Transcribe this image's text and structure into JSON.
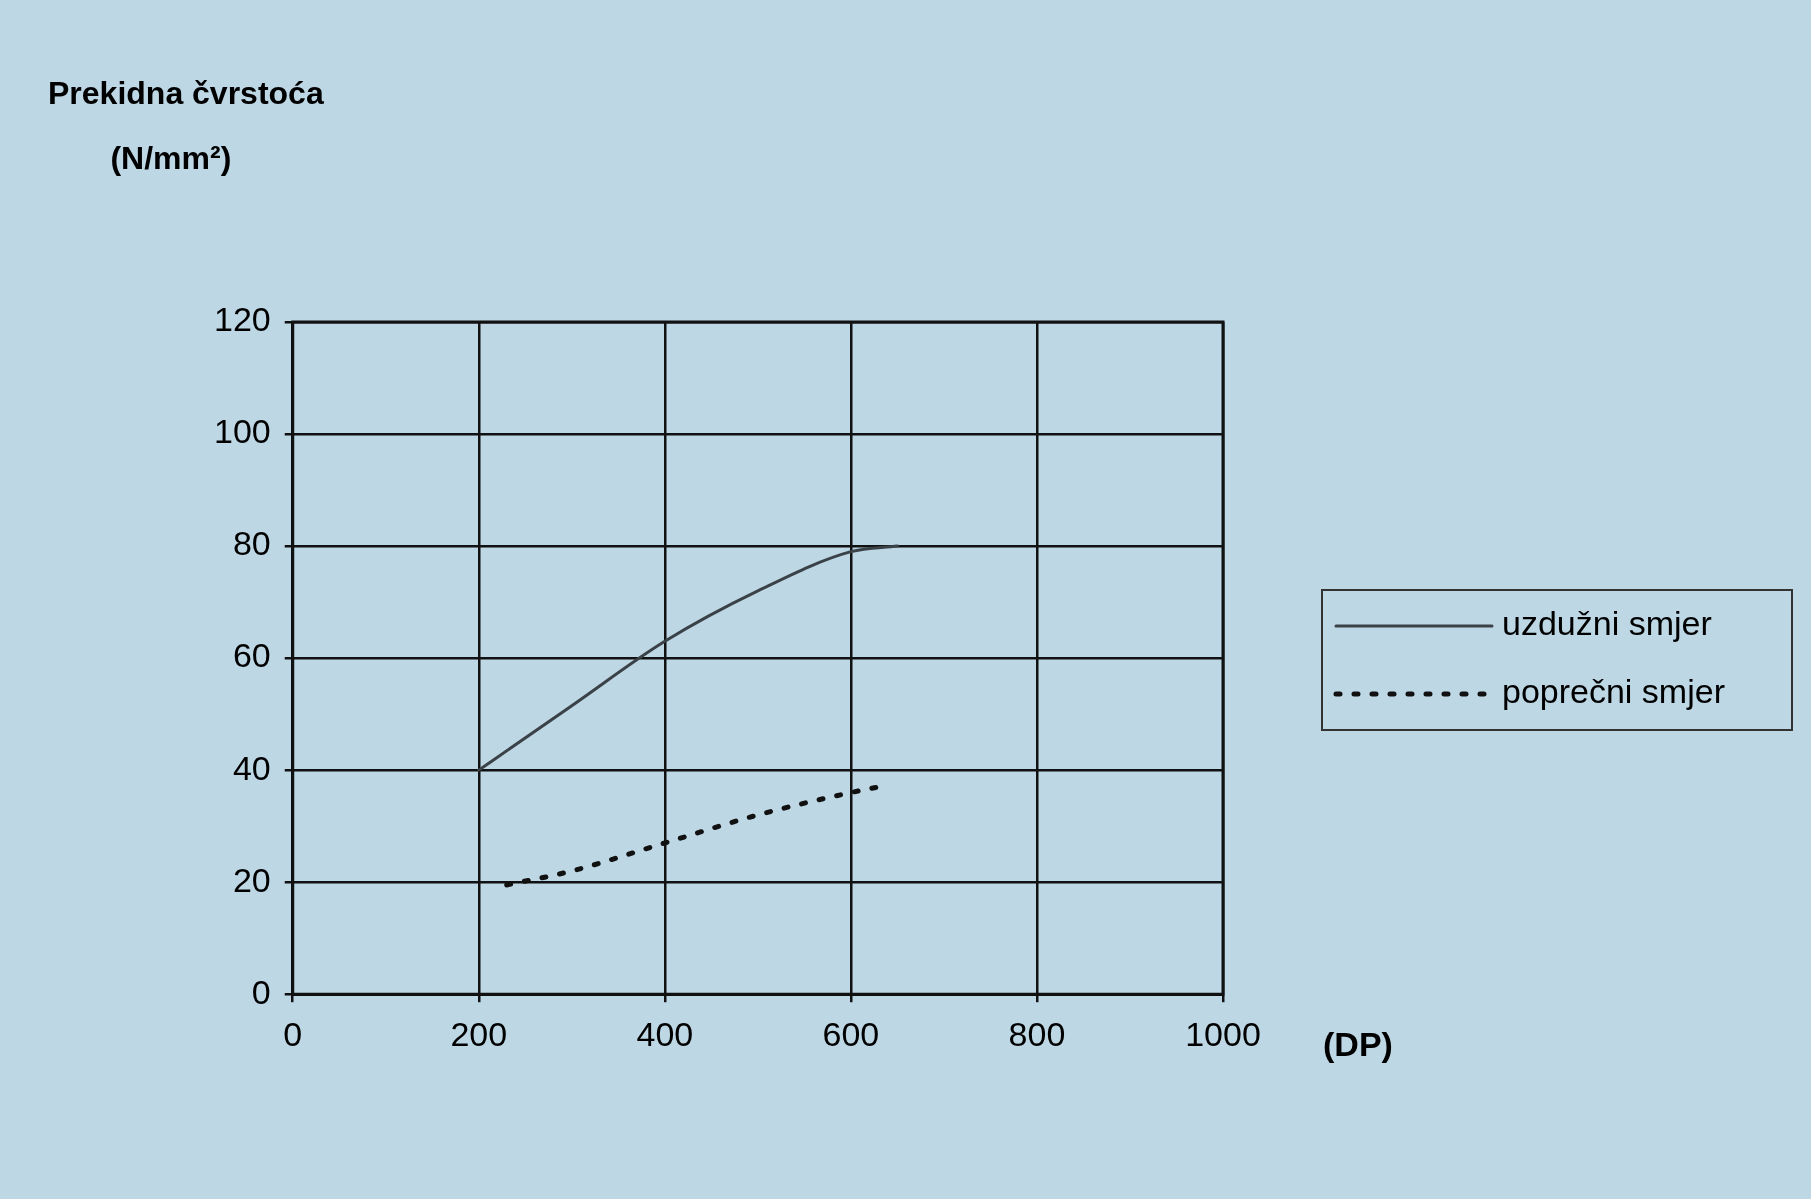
{
  "chart_data": {
    "type": "line",
    "xlabel": "(DP)",
    "ylabel": "Prekidna čvrstoća (N/mm²)",
    "xlim": [
      0,
      1000
    ],
    "xticks": [
      0,
      200,
      400,
      600,
      800,
      1000
    ],
    "ylim": [
      0,
      120
    ],
    "yticks": [
      0,
      20,
      40,
      60,
      80,
      100,
      120
    ],
    "grid": true,
    "legend": "right",
    "marker": "none",
    "series": [
      {
        "name": "uzdužni smjer",
        "color": "#3a4248",
        "line_style": "solid",
        "x": [
          200,
          300,
          400,
          500,
          600,
          650
        ],
        "values": [
          40,
          51.5,
          63,
          72,
          79,
          80
        ]
      },
      {
        "name": "poprečni smjer",
        "color": "#111111",
        "line_style": "dotted",
        "x": [
          230,
          300,
          400,
          500,
          600,
          630
        ],
        "values": [
          19.5,
          22,
          27,
          32,
          36,
          37
        ]
      }
    ]
  }
}
